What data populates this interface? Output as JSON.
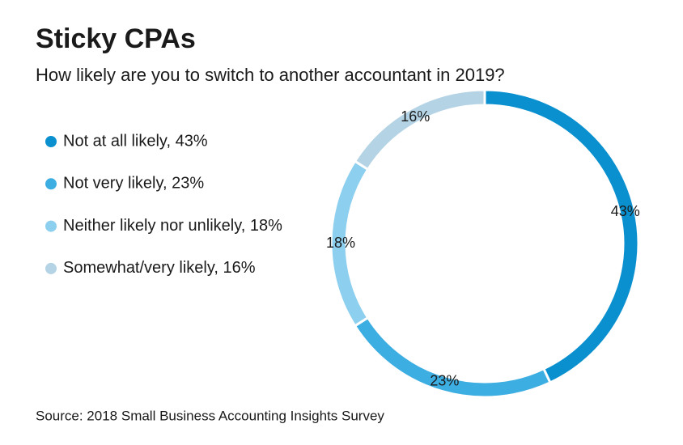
{
  "chart_data": {
    "type": "pie",
    "title": "Sticky CPAs",
    "subtitle": "How likely are you to switch to another accountant in 2019?",
    "source": "Source: 2018 Small Business Accounting Insights Survey",
    "categories": [
      "Not at all likely, 43%",
      "Not very likely, 23%",
      "Neither likely nor unlikely, 18%",
      "Somewhat/very likely, 16%"
    ],
    "values": [
      43,
      23,
      18,
      16
    ],
    "value_labels": [
      "43%",
      "23%",
      "18%",
      "16%"
    ],
    "colors": [
      "#0a90cf",
      "#3daee2",
      "#8dcfee",
      "#b4d3e5"
    ],
    "donut": true
  }
}
